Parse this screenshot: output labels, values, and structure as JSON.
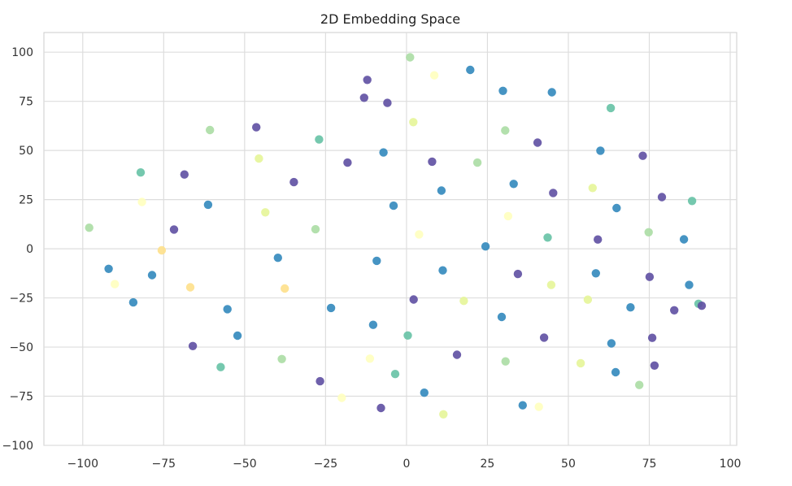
{
  "chart_data": {
    "type": "scatter",
    "title": "2D Embedding Space",
    "xlabel": "",
    "ylabel": "",
    "xlim": [
      -112,
      102
    ],
    "ylim": [
      -100,
      110
    ],
    "x_ticks": [
      -100,
      -75,
      -50,
      -25,
      0,
      25,
      50,
      75,
      100
    ],
    "y_ticks": [
      -100,
      -75,
      -50,
      -25,
      0,
      25,
      50,
      75,
      100
    ],
    "x_tick_labels": [
      "−100",
      "−75",
      "−50",
      "−25",
      "0",
      "25",
      "50",
      "75",
      "100"
    ],
    "y_tick_labels": [
      "−100",
      "−75",
      "−50",
      "−25",
      "0",
      "25",
      "50",
      "75",
      "100"
    ],
    "grid": true,
    "legend": "none",
    "colormap": "Spectral",
    "colors": [
      "#9e0142",
      "#d53e4f",
      "#f46d43",
      "#fdae61",
      "#fee08b",
      "#ffffbf",
      "#e6f598",
      "#abdda4",
      "#66c2a5",
      "#3288bd",
      "#5e4fa2"
    ],
    "points": [
      {
        "x": -98.0,
        "y": 10.7,
        "c": 0.66
      },
      {
        "x": -81.7,
        "y": 23.8,
        "c": 0.45
      },
      {
        "x": -82.1,
        "y": 38.8,
        "c": 0.81
      },
      {
        "x": -68.6,
        "y": 37.8,
        "c": 0.99
      },
      {
        "x": -71.8,
        "y": 9.8,
        "c": 0.97
      },
      {
        "x": -61.3,
        "y": 22.4,
        "c": 0.85
      },
      {
        "x": -75.6,
        "y": -0.8,
        "c": 0.39
      },
      {
        "x": -78.6,
        "y": -13.4,
        "c": 0.92
      },
      {
        "x": -66.8,
        "y": -19.6,
        "c": 0.41
      },
      {
        "x": -84.4,
        "y": -27.3,
        "c": 0.88
      },
      {
        "x": -55.3,
        "y": -30.7,
        "c": 0.94
      },
      {
        "x": -60.7,
        "y": 60.4,
        "c": 0.71
      },
      {
        "x": -46.4,
        "y": 61.8,
        "c": 0.95
      },
      {
        "x": -45.6,
        "y": 45.9,
        "c": 0.62
      },
      {
        "x": -34.8,
        "y": 33.9,
        "c": 0.98
      },
      {
        "x": -43.6,
        "y": 18.5,
        "c": 0.58
      },
      {
        "x": -27.0,
        "y": 55.6,
        "c": 0.84
      },
      {
        "x": -18.2,
        "y": 43.8,
        "c": 0.96
      },
      {
        "x": -28.1,
        "y": 9.9,
        "c": 0.73
      },
      {
        "x": -39.7,
        "y": -4.6,
        "c": 0.91
      },
      {
        "x": -37.6,
        "y": -20.2,
        "c": 0.44
      },
      {
        "x": -23.3,
        "y": -30.1,
        "c": 0.87
      },
      {
        "x": -52.2,
        "y": -44.2,
        "c": 0.93
      },
      {
        "x": -38.5,
        "y": -56.1,
        "c": 0.66
      },
      {
        "x": -57.4,
        "y": -60.2,
        "c": 0.81
      },
      {
        "x": -26.7,
        "y": -67.4,
        "c": 0.98
      },
      {
        "x": -11.3,
        "y": -55.9,
        "c": 0.52
      },
      {
        "x": -10.3,
        "y": -38.7,
        "c": 0.9
      },
      {
        "x": -12.1,
        "y": 85.9,
        "c": 0.97
      },
      {
        "x": 1.1,
        "y": 97.4,
        "c": 0.74
      },
      {
        "x": 8.6,
        "y": 88.2,
        "c": 0.46
      },
      {
        "x": 19.7,
        "y": 91.0,
        "c": 0.86
      },
      {
        "x": -5.9,
        "y": 74.2,
        "c": 0.95
      },
      {
        "x": 2.1,
        "y": 64.4,
        "c": 0.64
      },
      {
        "x": -7.1,
        "y": 49.0,
        "c": 0.89
      },
      {
        "x": 7.9,
        "y": 44.3,
        "c": 0.99
      },
      {
        "x": 21.9,
        "y": 43.8,
        "c": 0.7
      },
      {
        "x": 10.8,
        "y": 29.6,
        "c": 0.92
      },
      {
        "x": -4.0,
        "y": 21.9,
        "c": 0.85
      },
      {
        "x": 3.9,
        "y": 7.3,
        "c": 0.47
      },
      {
        "x": -9.2,
        "y": -6.1,
        "c": 0.94
      },
      {
        "x": 11.2,
        "y": -11.0,
        "c": 0.88
      },
      {
        "x": 2.2,
        "y": -25.8,
        "c": 0.97
      },
      {
        "x": 17.7,
        "y": -26.5,
        "c": 0.61
      },
      {
        "x": 0.4,
        "y": -44.1,
        "c": 0.83
      },
      {
        "x": 15.6,
        "y": -53.9,
        "c": 0.96
      },
      {
        "x": -3.5,
        "y": -63.7,
        "c": 0.75
      },
      {
        "x": 5.5,
        "y": -73.2,
        "c": 0.91
      },
      {
        "x": 11.4,
        "y": -84.2,
        "c": 0.55
      },
      {
        "x": -7.9,
        "y": -81.0,
        "c": 0.98
      },
      {
        "x": 29.8,
        "y": 80.3,
        "c": 0.86
      },
      {
        "x": 44.9,
        "y": 79.6,
        "c": 0.93
      },
      {
        "x": 30.5,
        "y": 60.2,
        "c": 0.67
      },
      {
        "x": 40.5,
        "y": 54.0,
        "c": 0.95
      },
      {
        "x": 33.1,
        "y": 33.0,
        "c": 0.88
      },
      {
        "x": 45.3,
        "y": 28.4,
        "c": 0.99
      },
      {
        "x": 31.4,
        "y": 16.6,
        "c": 0.51
      },
      {
        "x": 43.6,
        "y": 5.7,
        "c": 0.82
      },
      {
        "x": 24.4,
        "y": 1.2,
        "c": 0.92
      },
      {
        "x": 34.4,
        "y": -12.8,
        "c": 0.96
      },
      {
        "x": 44.7,
        "y": -18.4,
        "c": 0.57
      },
      {
        "x": 29.4,
        "y": -34.7,
        "c": 0.89
      },
      {
        "x": 42.5,
        "y": -45.2,
        "c": 0.98
      },
      {
        "x": 30.6,
        "y": -57.3,
        "c": 0.73
      },
      {
        "x": 35.9,
        "y": -79.6,
        "c": 0.94
      },
      {
        "x": 63.1,
        "y": 71.6,
        "c": 0.79
      },
      {
        "x": 59.9,
        "y": 49.9,
        "c": 0.89
      },
      {
        "x": 73.0,
        "y": 47.3,
        "c": 0.97
      },
      {
        "x": 57.5,
        "y": 30.9,
        "c": 0.63
      },
      {
        "x": 64.9,
        "y": 20.7,
        "c": 0.9
      },
      {
        "x": 78.9,
        "y": 26.3,
        "c": 0.95
      },
      {
        "x": 88.2,
        "y": 24.3,
        "c": 0.84
      },
      {
        "x": 59.1,
        "y": 4.7,
        "c": 0.99
      },
      {
        "x": 74.8,
        "y": 8.4,
        "c": 0.71
      },
      {
        "x": 85.7,
        "y": 4.8,
        "c": 0.91
      },
      {
        "x": 58.5,
        "y": -12.5,
        "c": 0.87
      },
      {
        "x": 75.1,
        "y": -14.3,
        "c": 0.96
      },
      {
        "x": 56.0,
        "y": -25.9,
        "c": 0.62
      },
      {
        "x": 69.2,
        "y": -29.8,
        "c": 0.93
      },
      {
        "x": 82.7,
        "y": -31.3,
        "c": 0.98
      },
      {
        "x": 90.2,
        "y": -28.0,
        "c": 0.76
      },
      {
        "x": 63.3,
        "y": -48.1,
        "c": 0.89
      },
      {
        "x": 75.9,
        "y": -45.3,
        "c": 0.95
      },
      {
        "x": 53.8,
        "y": -58.2,
        "c": 0.56
      },
      {
        "x": 64.6,
        "y": -62.8,
        "c": 0.92
      },
      {
        "x": 76.6,
        "y": -59.4,
        "c": 0.97
      },
      {
        "x": 71.9,
        "y": -69.3,
        "c": 0.69
      },
      {
        "x": -92.0,
        "y": -10.2,
        "c": 0.88
      },
      {
        "x": -90.1,
        "y": -18.0,
        "c": 0.47
      },
      {
        "x": -66.0,
        "y": -49.5,
        "c": 0.95
      },
      {
        "x": -20.0,
        "y": -75.8,
        "c": 0.53
      },
      {
        "x": -13.1,
        "y": 76.8,
        "c": 0.96
      },
      {
        "x": 40.9,
        "y": -80.4,
        "c": 0.45
      },
      {
        "x": 87.3,
        "y": -18.4,
        "c": 0.94
      },
      {
        "x": 91.2,
        "y": -29.0,
        "c": 0.99
      }
    ]
  }
}
